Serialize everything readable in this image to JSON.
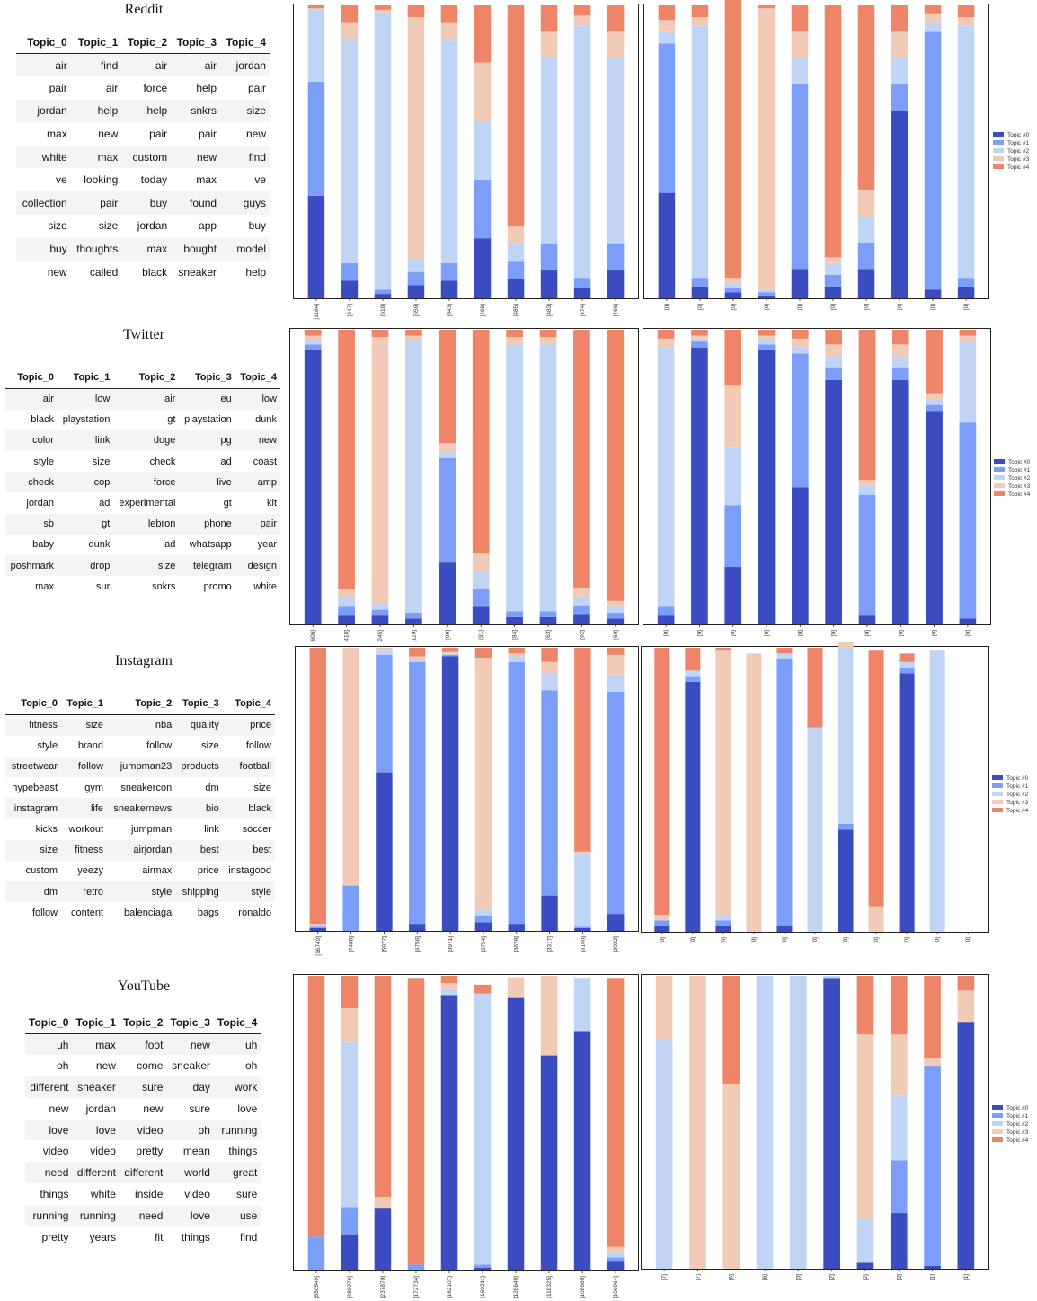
{
  "colors": [
    "#3b4cc0",
    "#7b9ff9",
    "#c0d4f5",
    "#f2cbb7",
    "#ee8468"
  ],
  "legend": [
    "Topic #0",
    "Topic #1",
    "Topic #2",
    "Topic #3",
    "Topic #4"
  ],
  "sections": [
    {
      "title": "Reddit",
      "headers": [
        "Topic_0",
        "Topic_1",
        "Topic_2",
        "Topic_3",
        "Topic_4"
      ],
      "rows": [
        [
          "air",
          "find",
          "air",
          "air",
          "jordan"
        ],
        [
          "pair",
          "air",
          "force",
          "help",
          "pair"
        ],
        [
          "jordan",
          "help",
          "help",
          "snkrs",
          "size"
        ],
        [
          "max",
          "new",
          "pair",
          "pair",
          "new"
        ],
        [
          "white",
          "max",
          "custom",
          "new",
          "find"
        ],
        [
          "ve",
          "looking",
          "today",
          "max",
          "ve"
        ],
        [
          "collection",
          "pair",
          "buy",
          "found",
          "guys"
        ],
        [
          "size",
          "size",
          "jordan",
          "app",
          "buy"
        ],
        [
          "buy",
          "thoughts",
          "max",
          "bought",
          "model"
        ],
        [
          "new",
          "called",
          "black",
          "sneaker",
          "help"
        ]
      ]
    },
    {
      "title": "Twitter",
      "headers": [
        "Topic_0",
        "Topic_1",
        "Topic_2",
        "Topic_3",
        "Topic_4"
      ],
      "rows": [
        [
          "air",
          "low",
          "air",
          "eu",
          "low"
        ],
        [
          "black",
          "playstation",
          "gt",
          "playstation",
          "dunk"
        ],
        [
          "color",
          "link",
          "doge",
          "pg",
          "new"
        ],
        [
          "style",
          "size",
          "check",
          "ad",
          "coast"
        ],
        [
          "check",
          "cop",
          "force",
          "live",
          "amp"
        ],
        [
          "jordan",
          "ad",
          "experimental",
          "gt",
          "kit"
        ],
        [
          "sb",
          "gt",
          "lebron",
          "phone",
          "pair"
        ],
        [
          "baby",
          "dunk",
          "ad",
          "whatsapp",
          "year"
        ],
        [
          "poshmark",
          "drop",
          "size",
          "telegram",
          "design"
        ],
        [
          "max",
          "sur",
          "snkrs",
          "promo",
          "white"
        ]
      ]
    },
    {
      "title": "Instagram",
      "headers": [
        "Topic_0",
        "Topic_1",
        "Topic_2",
        "Topic_3",
        "Topic_4"
      ],
      "rows": [
        [
          "fitness",
          "size",
          "nba",
          "quality",
          "price"
        ],
        [
          "style",
          "brand",
          "follow",
          "size",
          "follow"
        ],
        [
          "streetwear",
          "follow",
          "jumpman23",
          "products",
          "football"
        ],
        [
          "hypebeast",
          "gym",
          "sneakercon",
          "dm",
          "size"
        ],
        [
          "instagram",
          "life",
          "sneakernews",
          "bio",
          "black"
        ],
        [
          "kicks",
          "workout",
          "jumpman",
          "link",
          "soccer"
        ],
        [
          "size",
          "fitness",
          "airjordan",
          "best",
          "best"
        ],
        [
          "custom",
          "yeezy",
          "airmax",
          "price",
          "instagood"
        ],
        [
          "dm",
          "retro",
          "style",
          "shipping",
          "style"
        ],
        [
          "follow",
          "content",
          "balenciaga",
          "bags",
          "ronaldo"
        ]
      ]
    },
    {
      "title": "YouTube",
      "headers": [
        "Topic_0",
        "Topic_1",
        "Topic_2",
        "Topic_3",
        "Topic_4"
      ],
      "rows": [
        [
          "uh",
          "max",
          "foot",
          "new",
          "uh"
        ],
        [
          "oh",
          "new",
          "come",
          "sneaker",
          "oh"
        ],
        [
          "different",
          "sneaker",
          "sure",
          "day",
          "work"
        ],
        [
          "new",
          "jordan",
          "new",
          "sure",
          "love"
        ],
        [
          "love",
          "love",
          "video",
          "oh",
          "running"
        ],
        [
          "video",
          "video",
          "pretty",
          "mean",
          "things"
        ],
        [
          "need",
          "different",
          "different",
          "world",
          "great"
        ],
        [
          "things",
          "white",
          "inside",
          "video",
          "sure"
        ],
        [
          "running",
          "running",
          "need",
          "love",
          "use"
        ],
        [
          "pretty",
          "years",
          "fit",
          "things",
          "find"
        ]
      ]
    }
  ],
  "chart_data": [
    {
      "type": "bar",
      "stacked": true,
      "panel": "Reddit-left",
      "ylim": [
        0,
        1
      ],
      "categories": [
        "[1184]",
        "[847]",
        "[618]",
        "[559]",
        "[543]",
        "[498]",
        "[485]",
        "[483]",
        "[474]",
        "[466]"
      ],
      "series": [
        {
          "name": "Topic #0",
          "values": [
            0.35,
            0.06,
            0.015,
            0.045,
            0.06,
            0.205,
            0.065,
            0.095,
            0.035,
            0.095
          ]
        },
        {
          "name": "Topic #1",
          "values": [
            0.39,
            0.06,
            0.015,
            0.045,
            0.06,
            0.2,
            0.06,
            0.09,
            0.035,
            0.09
          ]
        },
        {
          "name": "Topic #2",
          "values": [
            0.245,
            0.765,
            0.94,
            0.045,
            0.76,
            0.2,
            0.06,
            0.635,
            0.86,
            0.635
          ]
        },
        {
          "name": "Topic #3",
          "values": [
            0.005,
            0.055,
            0.015,
            0.825,
            0.06,
            0.2,
            0.06,
            0.09,
            0.035,
            0.09
          ]
        },
        {
          "name": "Topic #4",
          "values": [
            0.01,
            0.06,
            0.015,
            0.04,
            0.06,
            0.195,
            0.755,
            0.09,
            0.035,
            0.09
          ]
        }
      ]
    },
    {
      "type": "bar",
      "stacked": true,
      "panel": "Reddit-right",
      "ylim": [
        0,
        1
      ],
      "categories": [
        "[0]",
        "[0]",
        "[0]",
        "[0]",
        "[0]",
        "[0]",
        "[0]",
        "[0]",
        "[0]",
        "[0]"
      ],
      "series": [
        {
          "name": "Topic #0",
          "values": [
            0.36,
            0.04,
            0.02,
            0.01,
            0.1,
            0.04,
            0.1,
            0.64,
            0.03,
            0.04
          ]
        },
        {
          "name": "Topic #1",
          "values": [
            0.51,
            0.03,
            0.015,
            0.01,
            0.63,
            0.04,
            0.09,
            0.09,
            0.88,
            0.03
          ]
        },
        {
          "name": "Topic #2",
          "values": [
            0.04,
            0.86,
            0.015,
            0.01,
            0.09,
            0.04,
            0.09,
            0.09,
            0.03,
            0.86
          ]
        },
        {
          "name": "Topic #3",
          "values": [
            0.04,
            0.03,
            0.02,
            0.96,
            0.09,
            0.02,
            0.09,
            0.09,
            0.03,
            0.03
          ]
        },
        {
          "name": "Topic #4",
          "values": [
            0.05,
            0.04,
            0.95,
            0.01,
            0.09,
            0.86,
            0.63,
            0.09,
            0.03,
            0.04
          ]
        }
      ]
    },
    {
      "type": "bar",
      "stacked": true,
      "panel": "Twitter-left",
      "ylim": [
        0,
        1
      ],
      "categories": [
        "[606]",
        "[418]",
        "[245]",
        "[110]",
        "[99]",
        "[91]",
        "[84]",
        "[63]",
        "[62]",
        "[60]"
      ],
      "series": [
        {
          "name": "Topic #0",
          "values": [
            0.93,
            0.03,
            0.03,
            0.02,
            0.21,
            0.06,
            0.025,
            0.025,
            0.035,
            0.02
          ]
        },
        {
          "name": "Topic #1",
          "values": [
            0.02,
            0.03,
            0.02,
            0.02,
            0.355,
            0.06,
            0.02,
            0.02,
            0.03,
            0.02
          ]
        },
        {
          "name": "Topic #2",
          "values": [
            0.015,
            0.03,
            0.02,
            0.925,
            0.02,
            0.06,
            0.905,
            0.905,
            0.03,
            0.02
          ]
        },
        {
          "name": "Topic #3",
          "values": [
            0.015,
            0.03,
            0.905,
            0.015,
            0.03,
            0.06,
            0.025,
            0.025,
            0.03,
            0.02
          ]
        },
        {
          "name": "Topic #4",
          "values": [
            0.02,
            0.88,
            0.025,
            0.02,
            0.385,
            0.76,
            0.025,
            0.025,
            0.875,
            0.92
          ]
        }
      ]
    },
    {
      "type": "bar",
      "stacked": true,
      "panel": "Twitter-right",
      "ylim": [
        0,
        1
      ],
      "categories": [
        "[0]",
        "[0]",
        "[0]",
        "[0]",
        "[0]",
        "[0]",
        "[0]",
        "[0]",
        "[0]",
        "[0]"
      ],
      "series": [
        {
          "name": "Topic #0",
          "values": [
            0.03,
            0.94,
            0.195,
            0.93,
            0.465,
            0.83,
            0.03,
            0.83,
            0.725,
            0.02
          ]
        },
        {
          "name": "Topic #1",
          "values": [
            0.03,
            0.02,
            0.21,
            0.02,
            0.455,
            0.04,
            0.41,
            0.04,
            0.02,
            0.665
          ]
        },
        {
          "name": "Topic #2",
          "values": [
            0.88,
            0.01,
            0.195,
            0.02,
            0.02,
            0.04,
            0.03,
            0.04,
            0.02,
            0.275
          ]
        },
        {
          "name": "Topic #3",
          "values": [
            0.03,
            0.01,
            0.21,
            0.01,
            0.03,
            0.04,
            0.02,
            0.04,
            0.02,
            0.02
          ]
        },
        {
          "name": "Topic #4",
          "values": [
            0.03,
            0.02,
            0.19,
            0.02,
            0.03,
            0.05,
            0.51,
            0.05,
            0.215,
            0.02
          ]
        }
      ]
    },
    {
      "type": "bar",
      "stacked": true,
      "panel": "Instagram-left",
      "ylim": [
        0,
        1
      ],
      "categories": [
        "[16749]",
        "[7488]",
        "[5972]",
        "[4756]",
        "[3971]",
        "[3754]",
        "[3678]",
        "[3317]",
        "[3150]",
        "[3022]"
      ],
      "series": [
        {
          "name": "Topic #0",
          "values": [
            0.01,
            0.0,
            0.56,
            0.025,
            0.97,
            0.03,
            0.025,
            0.125,
            0.01,
            0.06
          ]
        },
        {
          "name": "Topic #1",
          "values": [
            0.005,
            0.16,
            0.415,
            0.925,
            0.005,
            0.025,
            0.925,
            0.725,
            0.005,
            0.785
          ]
        },
        {
          "name": "Topic #2",
          "values": [
            0.005,
            0.0,
            0.015,
            0.01,
            0.005,
            0.02,
            0.02,
            0.06,
            0.26,
            0.06
          ]
        },
        {
          "name": "Topic #3",
          "values": [
            0.005,
            0.84,
            0.01,
            0.01,
            0.005,
            0.89,
            0.01,
            0.04,
            0.005,
            0.07
          ]
        },
        {
          "name": "Topic #4",
          "values": [
            0.975,
            0.0,
            0.0,
            0.03,
            0.015,
            0.035,
            0.02,
            0.05,
            0.72,
            0.025
          ]
        }
      ]
    },
    {
      "type": "bar",
      "stacked": true,
      "panel": "Instagram-right",
      "ylim": [
        0,
        1
      ],
      "categories": [
        "[0]",
        "[0]",
        "[0]",
        "[0]",
        "[0]",
        "[0]",
        "[0]",
        "[0]",
        "[0]",
        "[0]",
        "[0]"
      ],
      "series": [
        {
          "name": "Topic #0",
          "values": [
            0.02,
            0.88,
            0.02,
            0.0,
            0.02,
            0.0,
            0.36,
            0.0,
            0.91,
            0.0,
            0.0
          ]
        },
        {
          "name": "Topic #1",
          "values": [
            0.02,
            0.02,
            0.02,
            0.0,
            0.94,
            0.0,
            0.02,
            0.0,
            0.02,
            0.0,
            0.0
          ]
        },
        {
          "name": "Topic #2",
          "values": [
            0.0,
            0.02,
            0.02,
            0.0,
            0.02,
            0.72,
            0.62,
            0.0,
            0.02,
            0.99,
            0.0
          ]
        },
        {
          "name": "Topic #3",
          "values": [
            0.02,
            0.0,
            0.93,
            0.98,
            0.0,
            0.0,
            0.02,
            0.09,
            0.0,
            0.0,
            0.0
          ]
        },
        {
          "name": "Topic #4",
          "values": [
            0.94,
            0.08,
            0.01,
            0.0,
            0.02,
            0.28,
            0.0,
            0.9,
            0.03,
            0.0,
            0.0
          ]
        }
      ]
    },
    {
      "type": "bar",
      "stacked": true,
      "panel": "YouTube-left",
      "ylim": [
        0,
        1
      ],
      "categories": [
        "[550549]",
        "[486076]",
        "[237870]",
        "[172734]",
        "[162107]",
        "[160211]",
        "[128649]",
        "[118325]",
        "[108665]",
        "[106964]"
      ],
      "series": [
        {
          "name": "Topic #0",
          "values": [
            0.0,
            0.12,
            0.21,
            0.0,
            0.935,
            0.01,
            0.925,
            0.73,
            0.81,
            0.03
          ]
        },
        {
          "name": "Topic #1",
          "values": [
            0.115,
            0.095,
            0.0,
            0.02,
            0.0,
            0.01,
            0.0,
            0.0,
            0.0,
            0.015
          ]
        },
        {
          "name": "Topic #2",
          "values": [
            0.0,
            0.56,
            0.0,
            0.0,
            0.02,
            0.92,
            0.0,
            0.0,
            0.18,
            0.015
          ]
        },
        {
          "name": "Topic #3",
          "values": [
            0.0,
            0.115,
            0.04,
            0.0,
            0.02,
            0.0,
            0.07,
            0.27,
            0.0,
            0.02
          ]
        },
        {
          "name": "Topic #4",
          "values": [
            0.885,
            0.11,
            0.75,
            0.97,
            0.025,
            0.03,
            0.0,
            0.0,
            0.0,
            0.91
          ]
        }
      ]
    },
    {
      "type": "bar",
      "stacked": true,
      "panel": "YouTube-right",
      "ylim": [
        0,
        1
      ],
      "categories": [
        "[7]",
        "[7]",
        "[6]",
        "[6]",
        "[3]",
        "[2]",
        "[2]",
        "[2]",
        "[1]",
        "[1]"
      ],
      "series": [
        {
          "name": "Topic #0",
          "values": [
            0.0,
            0.0,
            0.0,
            0.0,
            0.0,
            0.99,
            0.02,
            0.19,
            0.01,
            0.84
          ]
        },
        {
          "name": "Topic #1",
          "values": [
            0.0,
            0.0,
            0.0,
            0.0,
            0.0,
            0.0,
            0.0,
            0.18,
            0.68,
            0.0
          ]
        },
        {
          "name": "Topic #2",
          "values": [
            0.78,
            0.0,
            0.0,
            1.0,
            1.0,
            0.01,
            0.15,
            0.22,
            0.0,
            0.0
          ]
        },
        {
          "name": "Topic #3",
          "values": [
            0.22,
            1.0,
            0.63,
            0.0,
            0.0,
            0.0,
            0.63,
            0.21,
            0.03,
            0.11
          ]
        },
        {
          "name": "Topic #4",
          "values": [
            0.0,
            0.0,
            0.37,
            0.0,
            0.0,
            0.0,
            0.2,
            0.2,
            0.28,
            0.05
          ]
        }
      ]
    }
  ]
}
